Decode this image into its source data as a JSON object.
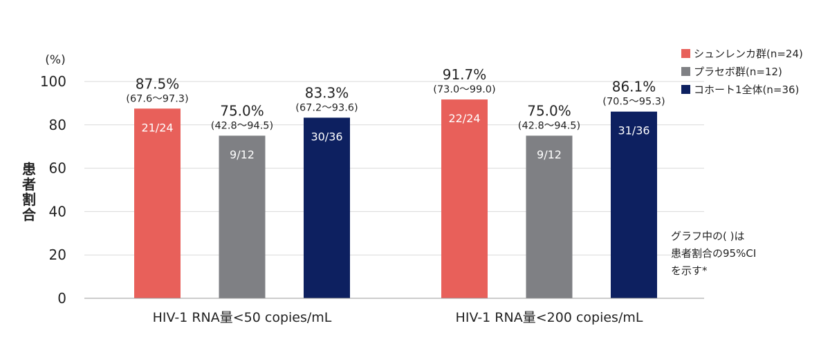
{
  "chart_data": {
    "type": "bar",
    "ylabel": "患者割合",
    "yunit": "(%)",
    "ylim": [
      0,
      100
    ],
    "yticks": [
      0,
      20,
      40,
      60,
      80,
      100
    ],
    "grid": true,
    "legend_position": "top-right",
    "categories": [
      "HIV-1 RNA量<50 copies/mL",
      "HIV-1 RNA量<200 copies/mL"
    ],
    "series": [
      {
        "name": "シュンレンカ群(n=24)",
        "color": "#e8605a",
        "values": [
          87.5,
          91.7
        ],
        "value_labels": [
          "87.5%",
          "91.7%"
        ],
        "ci_labels": [
          "(67.6〜97.3)",
          "(73.0〜99.0)"
        ],
        "count_labels": [
          "21/24",
          "22/24"
        ]
      },
      {
        "name": "プラセボ群(n=12)",
        "color": "#7f8084",
        "values": [
          75.0,
          75.0
        ],
        "value_labels": [
          "75.0%",
          "75.0%"
        ],
        "ci_labels": [
          "(42.8〜94.5)",
          "(42.8〜94.5)"
        ],
        "count_labels": [
          "9/12",
          "9/12"
        ]
      },
      {
        "name": "コホート1全体(n=36)",
        "color": "#0d2060",
        "values": [
          83.3,
          86.1
        ],
        "value_labels": [
          "83.3%",
          "86.1%"
        ],
        "ci_labels": [
          "(67.2〜93.6)",
          "(70.5〜95.3)"
        ],
        "count_labels": [
          "30/36",
          "31/36"
        ]
      }
    ],
    "annotation": [
      "グラフ中の( )は",
      "患者割合の95%CI",
      "を示す*"
    ]
  }
}
